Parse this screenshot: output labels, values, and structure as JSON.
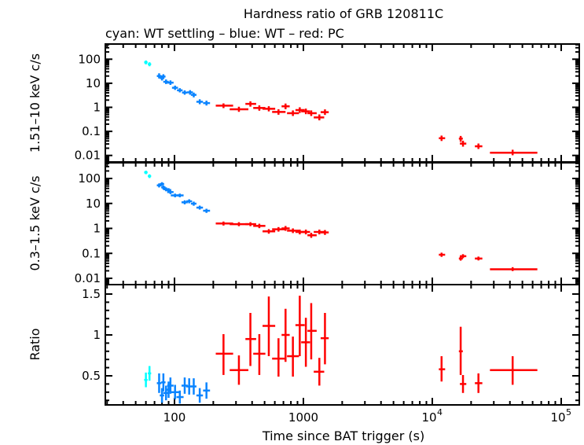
{
  "chart_data": [
    {
      "type": "scatter",
      "panel": "top",
      "title": "Hardness ratio of GRB 120811C",
      "subtitle": "cyan: WT settling – blue: WT – red: PC",
      "ylabel": "1.51–10 keV c/s",
      "yscale": "log",
      "ylim": [
        0.0045,
        590
      ],
      "yticks": [
        "100",
        "10",
        "1",
        "0.1",
        "0.01"
      ],
      "point_format": [
        "x",
        "xmin",
        "xmax",
        "y",
        "ymin",
        "ymax"
      ],
      "series": [
        {
          "color": "#00ffff",
          "points": [
            [
              60,
              59,
              61,
              74,
              66,
              82
            ],
            [
              64,
              63,
              65,
              62,
              55,
              69
            ]
          ]
        },
        {
          "color": "#0a84ff",
          "points": [
            [
              76,
              74,
              78,
              20,
              17,
              24
            ],
            [
              80,
              78,
              82,
              16.5,
              14,
              19.5
            ],
            [
              82,
              80,
              84,
              19,
              16,
              22
            ],
            [
              86,
              83,
              89,
              11.5,
              10,
              13.3
            ],
            [
              93,
              89,
              97,
              10.6,
              9.2,
              12.2
            ],
            [
              101,
              97,
              105,
              6.5,
              5.7,
              7.4
            ],
            [
              110,
              106,
              114,
              5.1,
              4.5,
              5.8
            ],
            [
              120,
              116,
              124,
              4.1,
              3.6,
              4.7
            ],
            [
              132,
              127,
              137,
              4.2,
              3.6,
              4.8
            ],
            [
              141,
              136,
              146,
              3.3,
              2.8,
              3.8
            ],
            [
              157,
              150,
              164,
              1.7,
              1.45,
              2.0
            ],
            [
              177,
              169,
              186,
              1.5,
              1.28,
              1.76
            ]
          ]
        },
        {
          "color": "#ff0000",
          "points": [
            [
              240,
              212,
              281,
              1.17,
              1.0,
              1.35
            ],
            [
              316,
              272,
              369,
              0.83,
              0.7,
              0.98
            ],
            [
              388,
              360,
              424,
              1.39,
              1.15,
              1.65
            ],
            [
              455,
              414,
              500,
              0.94,
              0.78,
              1.12
            ],
            [
              539,
              489,
              596,
              0.87,
              0.73,
              1.03
            ],
            [
              641,
              580,
              717,
              0.64,
              0.53,
              0.77
            ],
            [
              727,
              687,
              772,
              1.1,
              0.9,
              1.33
            ],
            [
              829,
              757,
              911,
              0.57,
              0.47,
              0.69
            ],
            [
              937,
              880,
              1010,
              0.77,
              0.63,
              0.93
            ],
            [
              1045,
              975,
              1110,
              0.68,
              0.56,
              0.82
            ],
            [
              1150,
              1090,
              1250,
              0.57,
              0.47,
              0.69
            ],
            [
              1330,
              1220,
              1430,
              0.38,
              0.31,
              0.47
            ],
            [
              1470,
              1380,
              1550,
              0.63,
              0.52,
              0.76
            ],
            [
              11800,
              11400,
              12400,
              0.052,
              0.043,
              0.062
            ],
            [
              16600,
              16300,
              17000,
              0.05,
              0.04,
              0.06
            ],
            [
              17300,
              16600,
              18100,
              0.031,
              0.025,
              0.038
            ],
            [
              22800,
              21700,
              24100,
              0.024,
              0.02,
              0.029
            ],
            [
              42000,
              28400,
              64400,
              0.013,
              0.011,
              0.016
            ]
          ]
        }
      ]
    },
    {
      "type": "scatter",
      "panel": "middle",
      "ylabel": "0.3–1.5 keV c/s",
      "yscale": "log",
      "ylim": [
        0.0048,
        590
      ],
      "yticks": [
        "100",
        "10",
        "1",
        "0.1",
        "0.01"
      ],
      "point_format": [
        "x",
        "xmin",
        "xmax",
        "y",
        "ymin",
        "ymax"
      ],
      "series": [
        {
          "color": "#00ffff",
          "points": [
            [
              60,
              59,
              61,
              175,
              160,
              190
            ],
            [
              64,
              63,
              65,
              124,
              112,
              136
            ]
          ]
        },
        {
          "color": "#0a84ff",
          "points": [
            [
              76,
              74,
              78,
              53,
              47,
              59
            ],
            [
              80,
              78,
              82,
              60,
              54,
              66
            ],
            [
              82,
              80,
              84,
              44,
              39,
              49
            ],
            [
              86,
              83,
              89,
              37,
              33,
              41
            ],
            [
              90,
              87,
              93,
              34.5,
              31,
              38
            ],
            [
              93,
              89,
              97,
              28.5,
              25.5,
              31.5
            ],
            [
              101,
              95,
              107,
              21,
              19,
              23
            ],
            [
              110,
              105,
              116,
              21,
              19,
              23
            ],
            [
              120,
              115,
              125,
              11.1,
              9.9,
              12.4
            ],
            [
              130,
              125,
              135,
              12.2,
              10.9,
              13.6
            ],
            [
              141,
              136,
              146,
              9.8,
              8.7,
              11
            ],
            [
              157,
              150,
              164,
              6.8,
              6.1,
              7.6
            ],
            [
              177,
              169,
              186,
              5.1,
              4.5,
              5.7
            ]
          ]
        },
        {
          "color": "#ff0000",
          "points": [
            [
              240,
              212,
              281,
              1.57,
              1.4,
              1.75
            ],
            [
              316,
              272,
              369,
              1.48,
              1.32,
              1.65
            ],
            [
              388,
              360,
              424,
              1.48,
              1.32,
              1.65
            ],
            [
              455,
              414,
              500,
              1.26,
              1.1,
              1.43
            ],
            [
              539,
              489,
              596,
              0.76,
              0.66,
              0.87
            ],
            [
              641,
              580,
              717,
              0.92,
              0.8,
              1.05
            ],
            [
              727,
              687,
              772,
              1.0,
              0.86,
              1.16
            ],
            [
              829,
              757,
              911,
              0.81,
              0.7,
              0.93
            ],
            [
              937,
              880,
              1010,
              0.72,
              0.62,
              0.83
            ],
            [
              1045,
              975,
              1110,
              0.72,
              0.62,
              0.83
            ],
            [
              1150,
              1090,
              1250,
              0.53,
              0.45,
              0.62
            ],
            [
              1330,
              1220,
              1430,
              0.72,
              0.62,
              0.83
            ],
            [
              1470,
              1380,
              1550,
              0.69,
              0.59,
              0.8
            ],
            [
              11800,
              11400,
              12400,
              0.088,
              0.078,
              0.099
            ],
            [
              16600,
              16300,
              17000,
              0.062,
              0.055,
              0.07
            ],
            [
              17300,
              16600,
              18100,
              0.077,
              0.069,
              0.086
            ],
            [
              22800,
              21700,
              24100,
              0.062,
              0.056,
              0.069
            ],
            [
              42000,
              28400,
              64400,
              0.023,
              0.021,
              0.026
            ]
          ]
        }
      ]
    },
    {
      "type": "scatter",
      "panel": "bottom",
      "ylabel": "Ratio",
      "xlabel": "Time since BAT trigger (s)",
      "xscale": "log",
      "xlim": [
        28,
        140000
      ],
      "xticks": [
        {
          "value": 100,
          "label": "100"
        },
        {
          "value": 1000,
          "label": "1000"
        },
        {
          "value": 10000,
          "base": "10",
          "exp": "4"
        },
        {
          "value": 100000,
          "base": "10",
          "exp": "5"
        }
      ],
      "yscale": "linear",
      "ylim": [
        0.15,
        1.6
      ],
      "yticks": [
        "1.5",
        "1",
        "0.5"
      ],
      "point_format": [
        "x",
        "xmin",
        "xmax",
        "y",
        "ymin",
        "ymax"
      ],
      "series": [
        {
          "color": "#00ffff",
          "points": [
            [
              60,
              59,
              61,
              0.45,
              0.37,
              0.53
            ],
            [
              64,
              63,
              65,
              0.53,
              0.45,
              0.61
            ]
          ]
        },
        {
          "color": "#0a84ff",
          "points": [
            [
              76,
              74,
              78,
              0.41,
              0.3,
              0.52
            ],
            [
              80,
              78,
              82,
              0.26,
              0.18,
              0.34
            ],
            [
              82,
              80,
              84,
              0.42,
              0.32,
              0.52
            ],
            [
              86,
              83,
              89,
              0.29,
              0.21,
              0.37
            ],
            [
              90,
              87,
              93,
              0.33,
              0.24,
              0.42
            ],
            [
              93,
              89,
              97,
              0.38,
              0.29,
              0.47
            ],
            [
              101,
              95,
              107,
              0.3,
              0.22,
              0.38
            ],
            [
              110,
              105,
              116,
              0.24,
              0.17,
              0.31
            ],
            [
              120,
              115,
              125,
              0.38,
              0.29,
              0.47
            ],
            [
              130,
              125,
              135,
              0.37,
              0.28,
              0.46
            ],
            [
              141,
              136,
              146,
              0.37,
              0.28,
              0.46
            ],
            [
              157,
              150,
              164,
              0.26,
              0.18,
              0.34
            ],
            [
              177,
              169,
              186,
              0.32,
              0.23,
              0.41
            ]
          ]
        },
        {
          "color": "#ff0000",
          "points": [
            [
              240,
              212,
              281,
              0.77,
              0.52,
              1.0
            ],
            [
              316,
              272,
              369,
              0.57,
              0.4,
              0.74
            ],
            [
              388,
              360,
              424,
              0.95,
              0.63,
              1.26
            ],
            [
              455,
              414,
              500,
              0.77,
              0.52,
              1.0
            ],
            [
              539,
              489,
              596,
              1.11,
              0.75,
              1.46
            ],
            [
              641,
              580,
              717,
              0.71,
              0.5,
              0.95
            ],
            [
              727,
              687,
              772,
              1.0,
              0.68,
              1.31
            ],
            [
              829,
              757,
              911,
              0.74,
              0.5,
              0.97
            ],
            [
              937,
              880,
              1010,
              1.12,
              0.75,
              1.47
            ],
            [
              1045,
              975,
              1110,
              0.91,
              0.62,
              1.2
            ],
            [
              1150,
              1090,
              1250,
              1.05,
              0.71,
              1.38
            ],
            [
              1330,
              1220,
              1430,
              0.55,
              0.39,
              0.71
            ],
            [
              1470,
              1380,
              1550,
              0.96,
              0.65,
              1.26
            ],
            [
              11800,
              11400,
              12400,
              0.58,
              0.44,
              0.73
            ],
            [
              16600,
              16300,
              17000,
              0.8,
              0.52,
              1.09
            ],
            [
              17300,
              16600,
              18100,
              0.4,
              0.3,
              0.5
            ],
            [
              22800,
              21700,
              24100,
              0.41,
              0.3,
              0.52
            ],
            [
              42000,
              28400,
              64400,
              0.57,
              0.4,
              0.73
            ]
          ]
        }
      ]
    }
  ]
}
